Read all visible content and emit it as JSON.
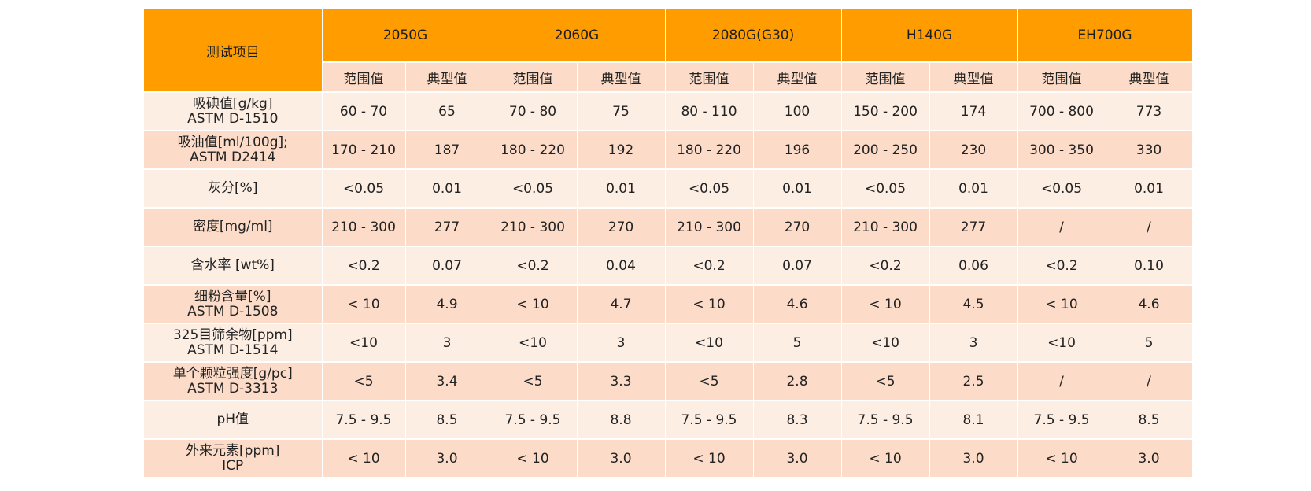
{
  "table": {
    "corner_label": "测试项目",
    "grades": [
      "2050G",
      "2060G",
      "2080G(G30)",
      "H140G",
      "EH700G"
    ],
    "sub_headers": [
      "范围值",
      "典型值"
    ],
    "rows": [
      {
        "item": [
          "吸碘值[g/kg]",
          "ASTM D-1510"
        ],
        "values": [
          "60 - 70",
          "65",
          "70 - 80",
          "75",
          "80 - 110",
          "100",
          "150 - 200",
          "174",
          "700 - 800",
          "773"
        ]
      },
      {
        "item": [
          "吸油值[ml/100g];",
          "ASTM D2414"
        ],
        "values": [
          "170 - 210",
          "187",
          "180 - 220",
          "192",
          "180 - 220",
          "196",
          "200 - 250",
          "230",
          "300 - 350",
          "330"
        ]
      },
      {
        "item": [
          "灰分[%]"
        ],
        "values": [
          "<0.05",
          "0.01",
          "<0.05",
          "0.01",
          "<0.05",
          "0.01",
          "<0.05",
          "0.01",
          "<0.05",
          "0.01"
        ]
      },
      {
        "item": [
          "密度[mg/ml]"
        ],
        "values": [
          "210 - 300",
          "277",
          "210 - 300",
          "270",
          "210 - 300",
          "270",
          "210 - 300",
          "277",
          "/",
          "/"
        ]
      },
      {
        "item": [
          "含水率 [wt%]"
        ],
        "values": [
          "<0.2",
          "0.07",
          "<0.2",
          "0.04",
          "<0.2",
          "0.07",
          "<0.2",
          "0.06",
          "<0.2",
          "0.10"
        ]
      },
      {
        "item": [
          "细粉含量[%]",
          "ASTM D-1508"
        ],
        "values": [
          "< 10",
          "4.9",
          "< 10",
          "4.7",
          "< 10",
          "4.6",
          "< 10",
          "4.5",
          "< 10",
          "4.6"
        ]
      },
      {
        "item": [
          "325目筛余物[ppm]",
          "ASTM D-1514"
        ],
        "values": [
          "<10",
          "3",
          "<10",
          "3",
          "<10",
          "5",
          "<10",
          "3",
          "<10",
          "5"
        ]
      },
      {
        "item": [
          "单个颗粒强度[g/pc]",
          "ASTM D-3313"
        ],
        "values": [
          "<5",
          "3.4",
          "<5",
          "3.3",
          "<5",
          "2.8",
          "<5",
          "2.5",
          "/",
          "/"
        ]
      },
      {
        "item": [
          "pH值"
        ],
        "values": [
          "7.5 - 9.5",
          "8.5",
          "7.5 - 9.5",
          "8.8",
          "7.5 - 9.5",
          "8.3",
          "7.5 - 9.5",
          "8.1",
          "7.5 - 9.5",
          "8.5"
        ]
      },
      {
        "item": [
          "外来元素[ppm]",
          "ICP"
        ],
        "values": [
          "< 10",
          "3.0",
          "< 10",
          "3.0",
          "< 10",
          "3.0",
          "< 10",
          "3.0",
          "< 10",
          "3.0"
        ]
      }
    ]
  },
  "colors": {
    "header": "#ff9c00",
    "row_dark": "#fcdcc8",
    "row_light": "#fdeee4"
  }
}
